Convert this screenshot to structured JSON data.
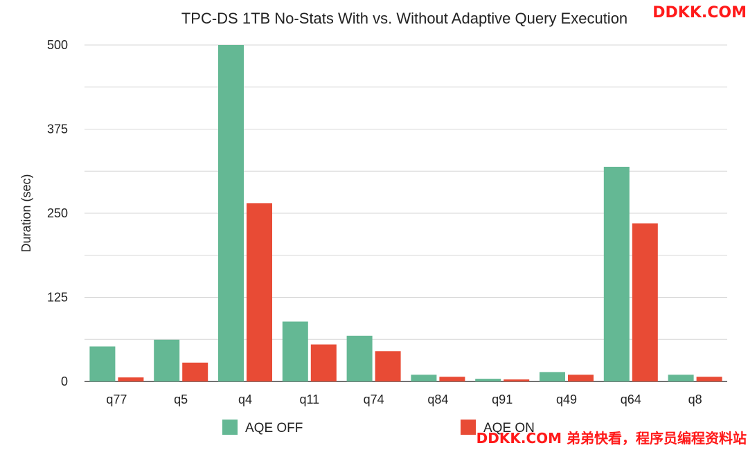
{
  "chart_data": {
    "type": "bar",
    "title": "TPC-DS 1TB No-Stats With vs. Without Adaptive Query Execution",
    "ylabel": "Duration (sec)",
    "xlabel": "",
    "ylim": [
      0,
      500
    ],
    "yticks": [
      0,
      125,
      250,
      375,
      500
    ],
    "grid": true,
    "legend_position": "bottom",
    "categories": [
      "q77",
      "q5",
      "q4",
      "q11",
      "q74",
      "q84",
      "q91",
      "q49",
      "q64",
      "q8"
    ],
    "series": [
      {
        "name": "AQE OFF",
        "color": "#64b894",
        "values": [
          52,
          62,
          500,
          89,
          68,
          10,
          4,
          14,
          319,
          10
        ]
      },
      {
        "name": "AQE ON",
        "color": "#e84b35",
        "values": [
          6,
          28,
          265,
          55,
          45,
          7,
          3,
          10,
          235,
          7
        ]
      }
    ]
  },
  "watermark": {
    "top_right": "DDKK.COM",
    "bottom_right": "DDKK.COM 弟弟快看，程序员编程资料站",
    "color": "#ff1a1a"
  }
}
